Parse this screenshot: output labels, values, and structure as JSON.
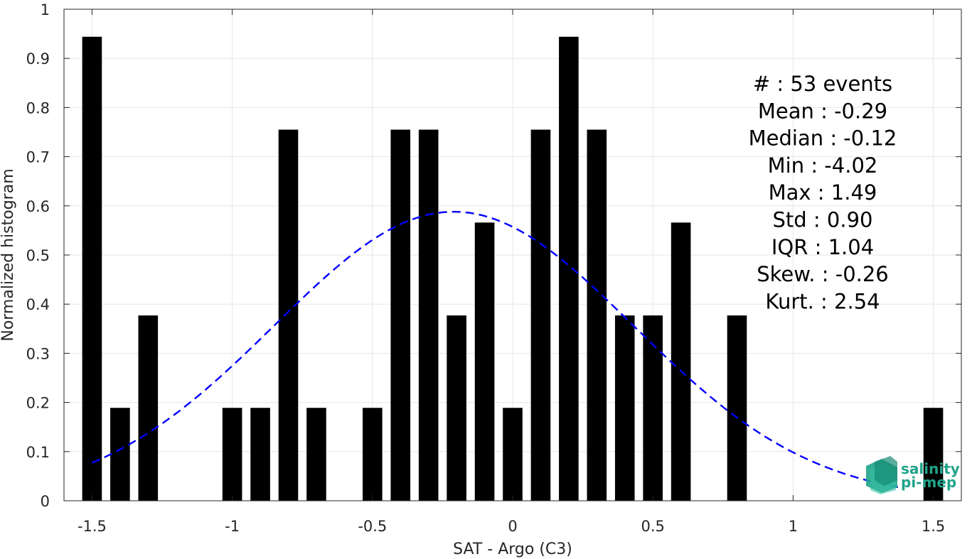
{
  "chart_data": {
    "type": "bar",
    "title": "",
    "xlabel": "SAT - Argo (C3)",
    "ylabel": "Normalized histogram",
    "xlim": [
      -1.6,
      1.6
    ],
    "ylim": [
      0,
      1
    ],
    "xticks": [
      -1.5,
      -1,
      -0.5,
      0,
      0.5,
      1,
      1.5
    ],
    "xtick_labels": [
      "-1.5",
      "-1",
      "-0.5",
      "0",
      "0.5",
      "1",
      "1.5"
    ],
    "yticks": [
      0,
      0.1,
      0.2,
      0.3,
      0.4,
      0.5,
      0.6,
      0.7,
      0.8,
      0.9,
      1
    ],
    "ytick_labels": [
      "0",
      "0.1",
      "0.2",
      "0.3",
      "0.4",
      "0.5",
      "0.6",
      "0.7",
      "0.8",
      "0.9",
      "1"
    ],
    "grid": true,
    "bar_color": "#000000",
    "bars": [
      {
        "x": -1.5,
        "value": 0.944
      },
      {
        "x": -1.4,
        "value": 0.189
      },
      {
        "x": -1.3,
        "value": 0.377
      },
      {
        "x": -1.0,
        "value": 0.189
      },
      {
        "x": -0.9,
        "value": 0.189
      },
      {
        "x": -0.8,
        "value": 0.755
      },
      {
        "x": -0.7,
        "value": 0.189
      },
      {
        "x": -0.5,
        "value": 0.189
      },
      {
        "x": -0.4,
        "value": 0.755
      },
      {
        "x": -0.3,
        "value": 0.755
      },
      {
        "x": -0.2,
        "value": 0.377
      },
      {
        "x": -0.1,
        "value": 0.566
      },
      {
        "x": 0.0,
        "value": 0.189
      },
      {
        "x": 0.1,
        "value": 0.755
      },
      {
        "x": 0.2,
        "value": 0.944
      },
      {
        "x": 0.3,
        "value": 0.755
      },
      {
        "x": 0.4,
        "value": 0.377
      },
      {
        "x": 0.5,
        "value": 0.377
      },
      {
        "x": 0.6,
        "value": 0.566
      },
      {
        "x": 0.8,
        "value": 0.377
      },
      {
        "x": 1.5,
        "value": 0.189
      }
    ],
    "fit_curve": {
      "type": "gaussian",
      "mean": -0.21,
      "peak": 0.588,
      "sigma": 0.64,
      "x_range": [
        -1.5,
        1.38
      ],
      "color": "#0000ff",
      "style": "dashed"
    }
  },
  "stats": [
    {
      "label": "#  : 53 events"
    },
    {
      "label": "Mean : -0.29"
    },
    {
      "label": "Median : -0.12"
    },
    {
      "label": "Min : -4.02"
    },
    {
      "label": "Max : 1.49"
    },
    {
      "label": "Std : 0.90"
    },
    {
      "label": "IQR : 1.04"
    },
    {
      "label": "Skew. : -0.26"
    },
    {
      "label": "Kurt. : 2.54"
    }
  ],
  "logo": {
    "line1": "salinity",
    "line2": "pi-mep",
    "color": "#1fa38a"
  }
}
